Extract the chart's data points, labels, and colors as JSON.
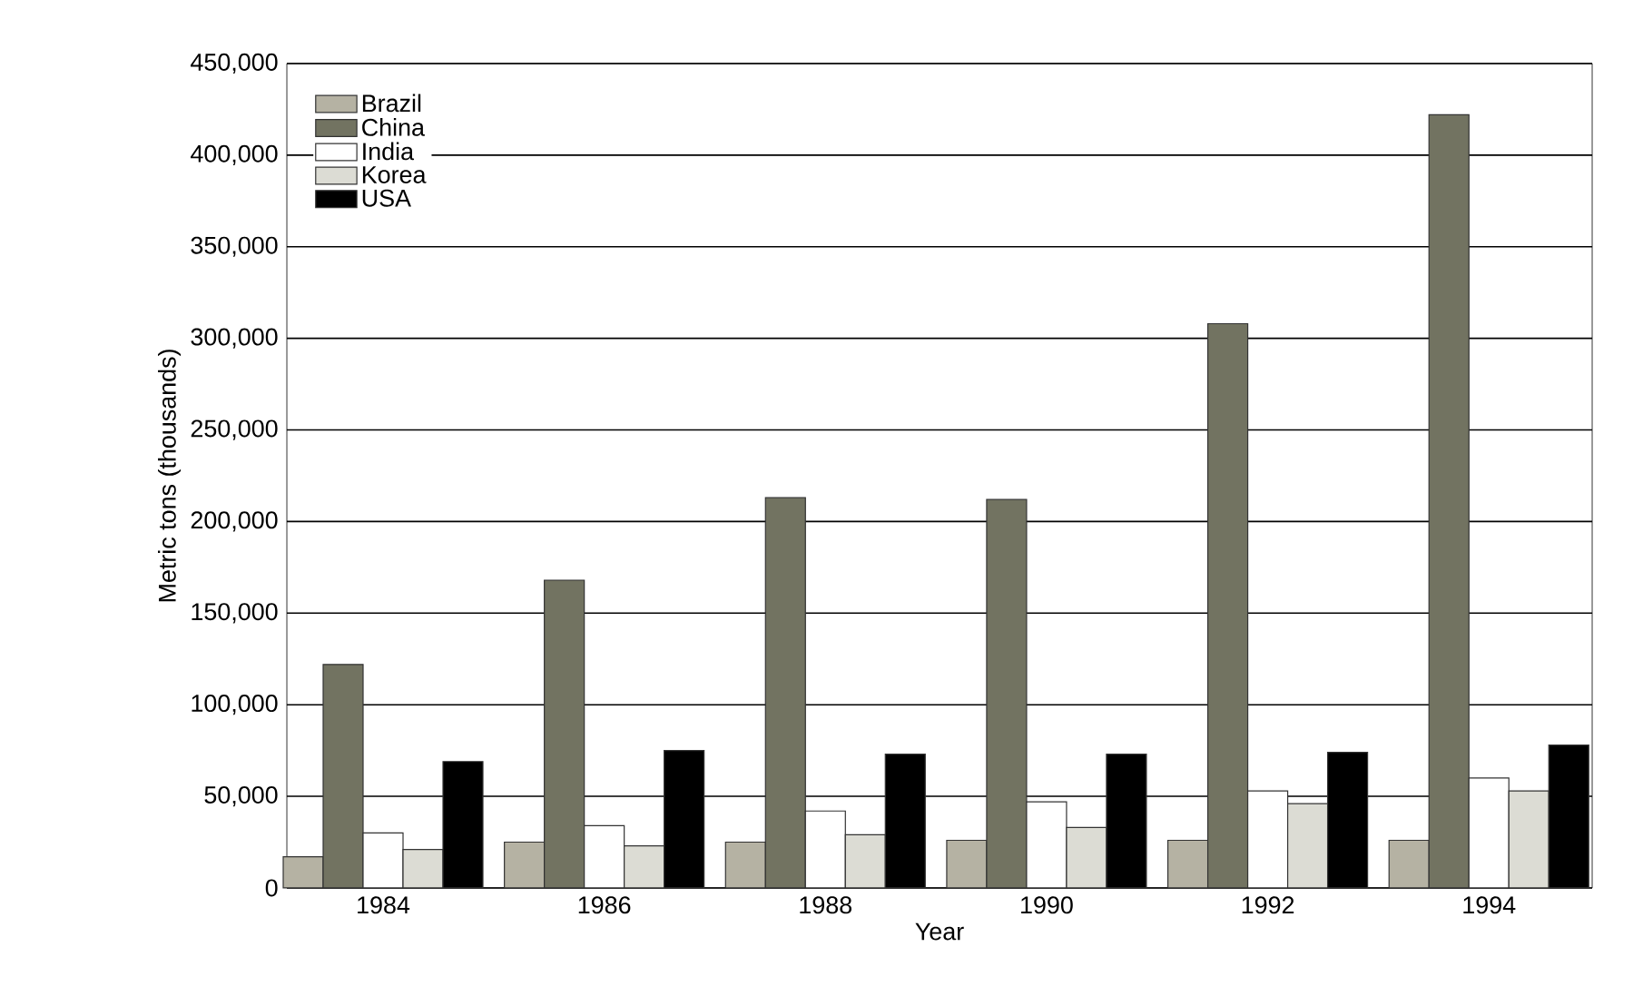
{
  "chart_data": {
    "type": "bar",
    "xlabel": "Year",
    "ylabel": "Metric tons (thousands)",
    "categories": [
      "1984",
      "1986",
      "1988",
      "1990",
      "1992",
      "1994"
    ],
    "series": [
      {
        "name": "Brazil",
        "color": "#b5b2a3",
        "values": [
          17000,
          25000,
          25000,
          26000,
          26000,
          26000
        ]
      },
      {
        "name": "China",
        "color": "#727361",
        "values": [
          122000,
          168000,
          213000,
          212000,
          308000,
          422000
        ]
      },
      {
        "name": "India",
        "color": "#ffffff",
        "values": [
          30000,
          34000,
          42000,
          47000,
          53000,
          60000
        ]
      },
      {
        "name": "Korea",
        "color": "#dcdcd4",
        "values": [
          21000,
          23000,
          29000,
          33000,
          46000,
          53000
        ]
      },
      {
        "name": "USA",
        "color": "#000000",
        "values": [
          69000,
          75000,
          73000,
          73000,
          74000,
          78000
        ]
      }
    ],
    "ylim": [
      0,
      450000
    ],
    "yticks": [
      0,
      {
        "value": 50000,
        "label": "50,000"
      },
      {
        "value": 100000,
        "label": "100,000"
      },
      {
        "value": 150000,
        "label": "150,000"
      },
      {
        "value": 200000,
        "label": "200,000"
      },
      {
        "value": 250000,
        "label": "250,000"
      },
      {
        "value": 300000,
        "label": "300,000"
      },
      {
        "value": 350000,
        "label": "350,000"
      },
      {
        "value": 400000,
        "label": "400,000"
      },
      {
        "value": 450000,
        "label": "450,000"
      }
    ],
    "grid": "y",
    "legend": "top left"
  }
}
